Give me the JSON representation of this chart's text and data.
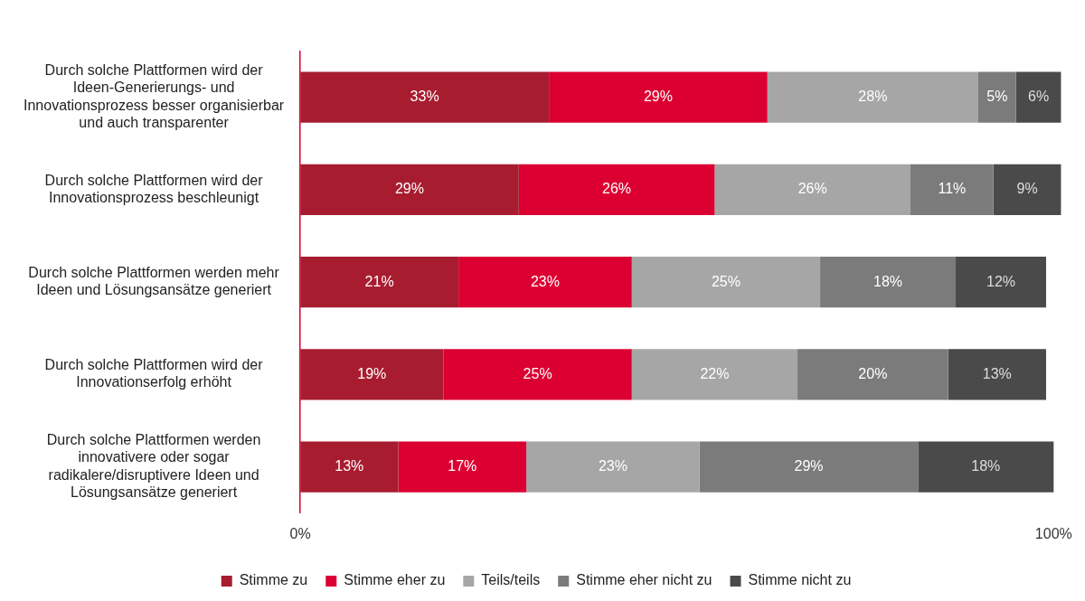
{
  "chart_data": {
    "type": "bar",
    "orientation": "horizontal",
    "stacked": true,
    "categories": [
      "Durch solche Plattformen wird der Ideen-Generierungs- und Innovationsprozess besser organisierbar und auch transparenter",
      "Durch solche Plattformen wird der Innovationsprozess beschleunigt",
      "Durch solche Plattformen werden mehr Ideen und Lösungsansätze generiert",
      "Durch solche Plattformen wird der Innovationserfolg erhöht",
      "Durch solche Plattformen werden innovativere oder sogar radikalere/disruptivere Ideen und Lösungsansätze generiert"
    ],
    "series": [
      {
        "name": "Stimme zu",
        "color": "#a81c30",
        "values": [
          33,
          29,
          21,
          19,
          13
        ],
        "value_labels": [
          "33%",
          "29%",
          "21%",
          "19%",
          "13%"
        ]
      },
      {
        "name": "Stimme eher zu",
        "color": "#dc0032",
        "values": [
          29,
          26,
          23,
          25,
          17
        ],
        "value_labels": [
          "29%",
          "26%",
          "23%",
          "25%",
          "17%"
        ]
      },
      {
        "name": "Teils/teils",
        "color": "#a6a6a6",
        "values": [
          28,
          26,
          25,
          22,
          23
        ],
        "value_labels": [
          "28%",
          "26%",
          "25%",
          "22%",
          "23%"
        ]
      },
      {
        "name": "Stimme eher nicht zu",
        "color": "#7b7b7b",
        "values": [
          5,
          11,
          18,
          20,
          29
        ],
        "value_labels": [
          "5%",
          "11%",
          "18%",
          "20%",
          "29%"
        ]
      },
      {
        "name": "Stimme nicht zu",
        "color": "#4a4a4a",
        "values": [
          6,
          9,
          12,
          13,
          18
        ],
        "value_labels": [
          "6%",
          "9%",
          "12%",
          "13%",
          "18%"
        ]
      }
    ],
    "xlim": [
      0,
      101
    ],
    "xticks": [
      {
        "value": 0,
        "label": "0%"
      },
      {
        "value": 100,
        "label": "100%"
      }
    ],
    "grid": false,
    "legend": "bottom"
  }
}
